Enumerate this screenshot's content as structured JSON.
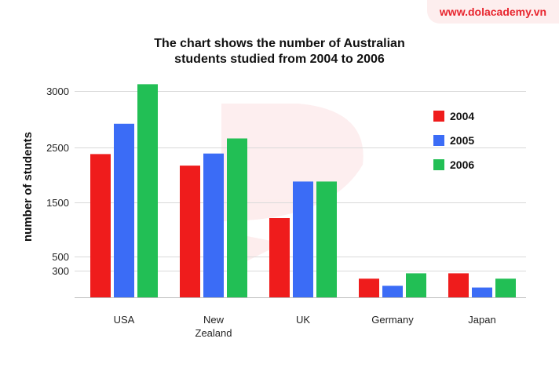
{
  "brand": "www.dolacademy.vn",
  "chart_data": {
    "type": "bar",
    "title_lines": [
      "The chart shows the number of Australian",
      "students studied from 2004 to 2006"
    ],
    "ylabel": "number of students",
    "yticks": [
      3000,
      2500,
      1500,
      500,
      300
    ],
    "categories": [
      [
        "USA"
      ],
      [
        "New",
        "Zealand"
      ],
      [
        "UK"
      ],
      [
        "Germany"
      ],
      [
        "Japan"
      ]
    ],
    "series": [
      {
        "name": "2004",
        "color": "#ef1c1c",
        "values": [
          2380,
          2170,
          1210,
          210,
          270
        ]
      },
      {
        "name": "2005",
        "color": "#3b6cf6",
        "values": [
          2710,
          2390,
          1880,
          130,
          110
        ]
      },
      {
        "name": "2006",
        "color": "#22bf55",
        "values": [
          3060,
          2580,
          1880,
          270,
          210
        ]
      }
    ],
    "legend_position": "top-right",
    "grid": true
  }
}
